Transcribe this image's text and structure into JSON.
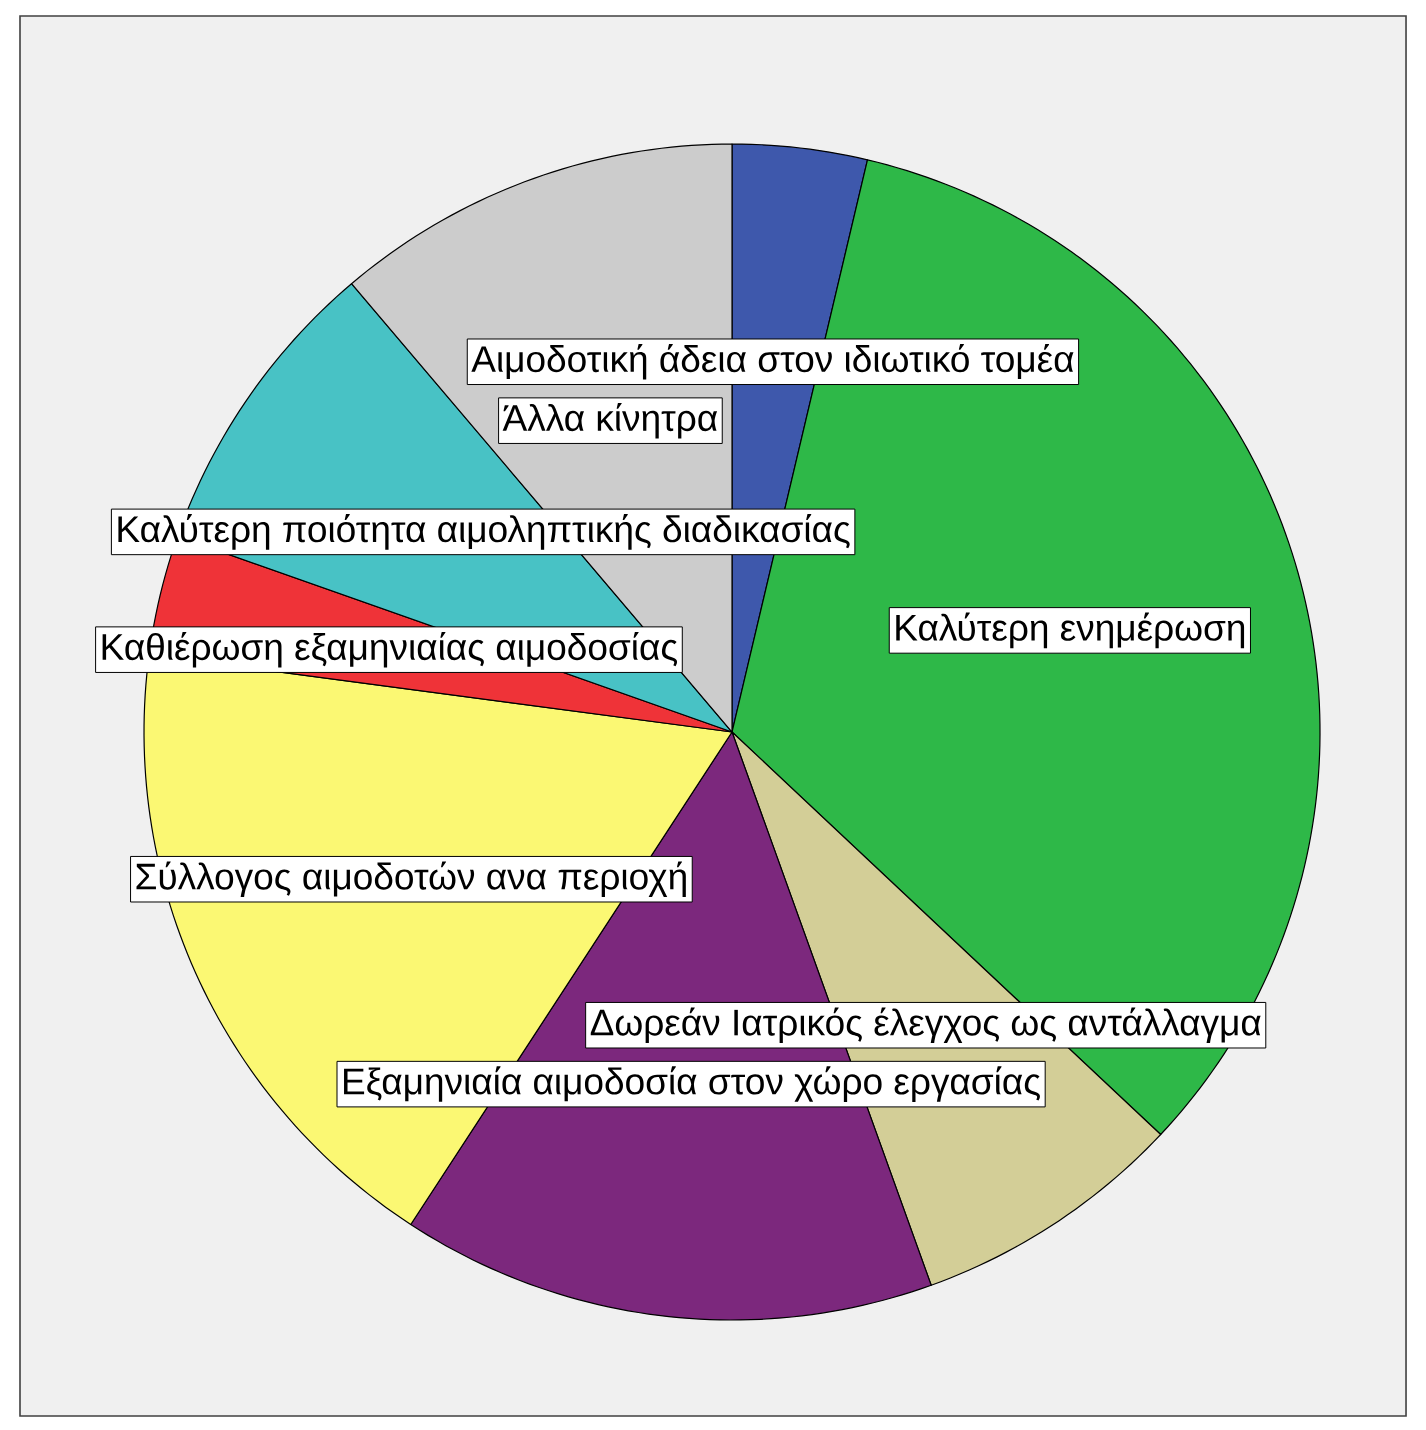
{
  "chart_data": {
    "type": "pie",
    "categories": [
      "Αιμοδοτική άδεια στον ιδιωτικό τομέα",
      "Καλύτερη ενημέρωση",
      "Δωρεάν Ιατρικός έλεγχος ως αντάλλαγμα",
      "Εξαμηνιαία αιμοδοσία στον χώρο εργασίας",
      "Σύλλογος αιμοδοτών ανα περιοχή",
      "Καθιέρωση εξαμηνιαίας αιμοδοσίας",
      "Καλύτερη ποιότητα αιμοληπτικής διαδικασίας",
      "Άλλα κίνητρα"
    ],
    "values": [
      3.7,
      33.3,
      7.5,
      14.7,
      17.9,
      3.3,
      8.4,
      11.2
    ],
    "colors": [
      "#3e58ac",
      "#2eb848",
      "#d3ce97",
      "#7c287d",
      "#fbf873",
      "#ef3338",
      "#48c2c5",
      "#cccccc"
    ]
  }
}
